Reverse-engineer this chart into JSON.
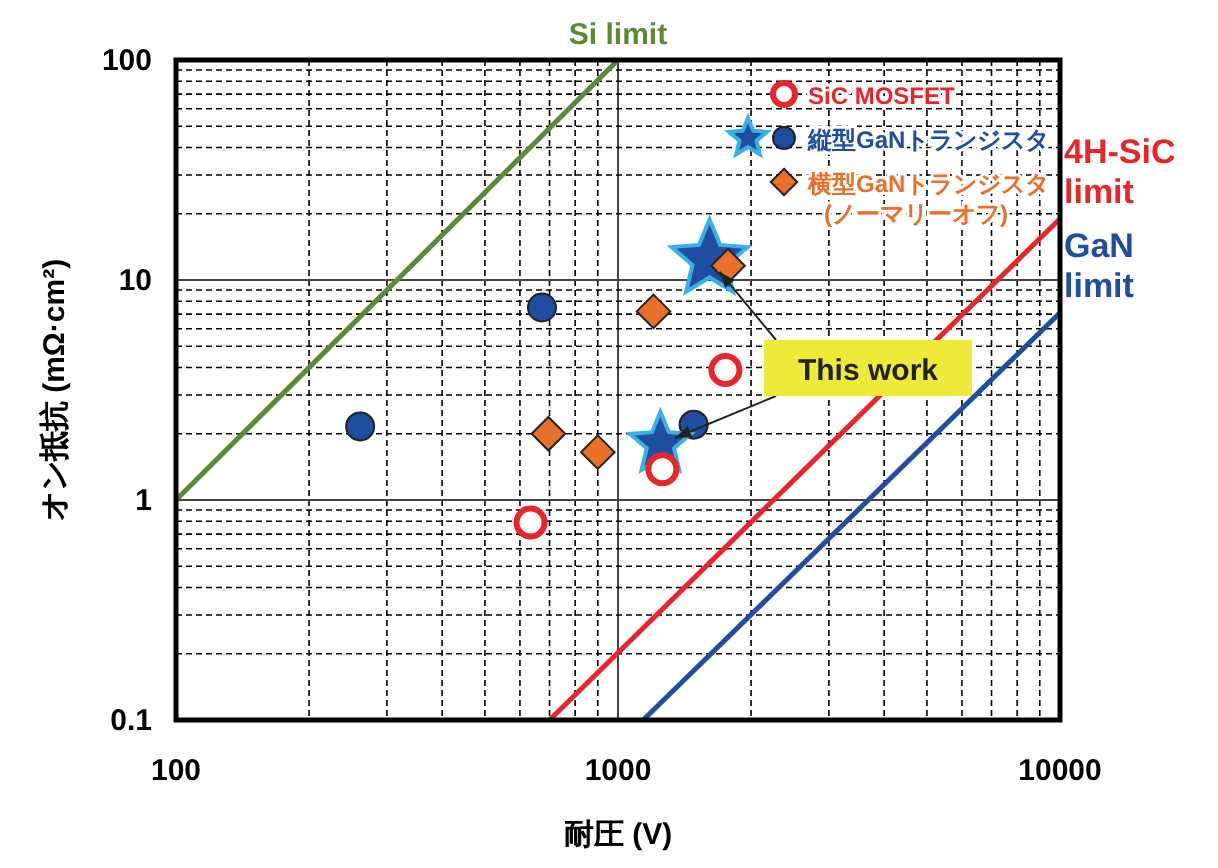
{
  "chart_data": {
    "type": "scatter",
    "xlabel": "耐圧 (V)",
    "ylabel": "オン抵抗 (mΩ·cm²)",
    "log": "xy",
    "xlim": [
      100,
      10000
    ],
    "ylim": [
      0.1,
      100
    ],
    "xticks": [
      100,
      1000,
      10000
    ],
    "yticks": [
      0.1,
      1,
      10,
      100
    ],
    "grid": true,
    "legend": "top right",
    "series": [
      {
        "name": "Si limit",
        "type": "line",
        "color": "#5b8a34",
        "x": [
          100,
          1000
        ],
        "values": [
          1,
          100
        ]
      },
      {
        "name": "4H-SiC limit",
        "type": "line",
        "color": "#e8262a",
        "x": [
          700,
          10000
        ],
        "values": [
          0.1,
          19
        ]
      },
      {
        "name": "GaN limit",
        "type": "line",
        "color": "#1f4ea0",
        "x": [
          1140,
          10000
        ],
        "values": [
          0.1,
          7.1
        ]
      },
      {
        "name": "SiC MOSFET",
        "marker": "circle",
        "color": "#e8262a",
        "x": [
          634,
          1260,
          1750
        ],
        "values": [
          0.79,
          1.38,
          3.9
        ]
      },
      {
        "name": "縦型GaNトランジスタ",
        "marker": "circle",
        "color": "#1f4ea0",
        "x": [
          261,
          673,
          1483
        ],
        "values": [
          2.16,
          7.5,
          2.2
        ]
      },
      {
        "marker": "star",
        "color": "#1f4ea0",
        "x": [
          1611,
          1247
        ],
        "values": [
          12.4,
          1.8
        ]
      },
      {
        "name": "横型GaNトランジスタ (ノーマリーオフ)",
        "marker": "diamond",
        "color": "#e8702a",
        "x": [
          696,
          900,
          1203,
          1774
        ],
        "values": [
          2.0,
          1.65,
          7.2,
          11.6
        ]
      }
    ],
    "annotations": [
      {
        "text": "This work",
        "x": 1611,
        "y": 12.4
      }
    ]
  }
}
